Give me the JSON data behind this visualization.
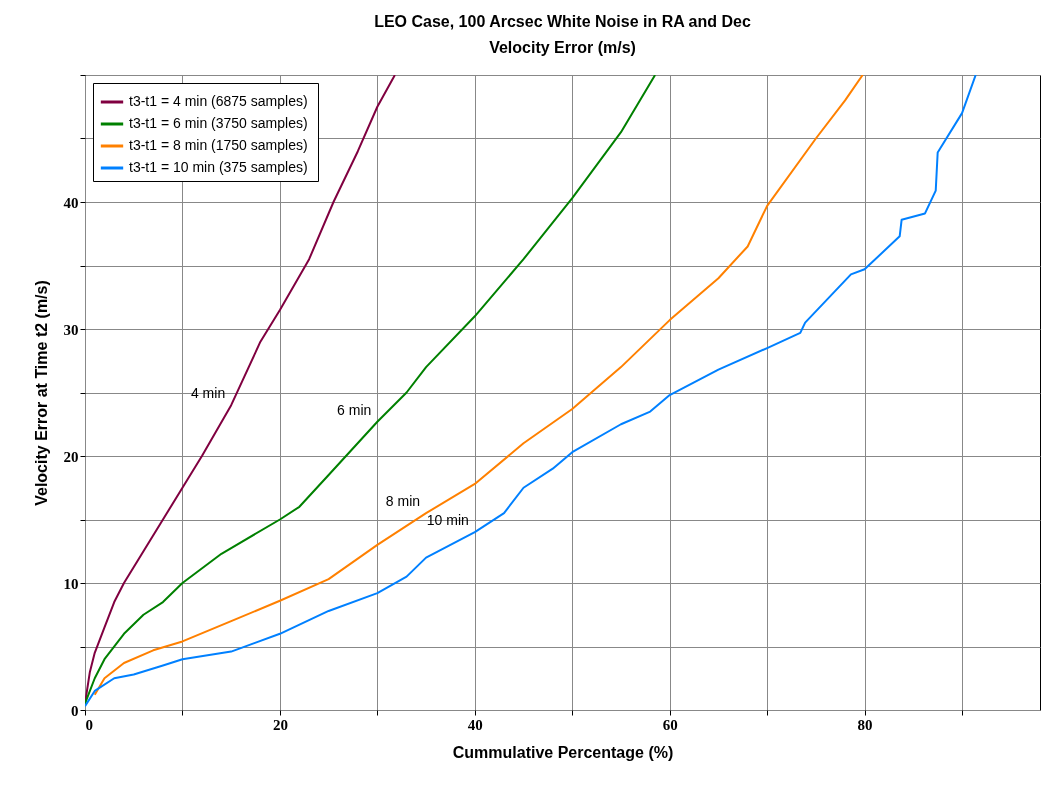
{
  "chart_data": {
    "type": "line",
    "title": "LEO Case, 100 Arcsec White Noise in RA and Dec",
    "subtitle": "Velocity Error (m/s)",
    "xlabel": "Cummulative Percentage (%)",
    "ylabel": "Velocity Error at Time t2 (m/s)",
    "xlim": [
      0,
      98
    ],
    "ylim": [
      0,
      50
    ],
    "xticks": [
      0,
      {
        "value": 10,
        "label": null
      },
      20,
      {
        "value": 30,
        "label": null
      },
      40,
      {
        "value": 50,
        "label": null
      },
      60,
      {
        "value": 70,
        "label": null
      },
      80,
      {
        "value": 90,
        "label": null
      }
    ],
    "yticks": [
      0,
      {
        "value": 5,
        "label": null
      },
      10,
      {
        "value": 15,
        "label": null
      },
      20,
      {
        "value": 25,
        "label": null
      },
      30,
      {
        "value": 35,
        "label": null
      },
      40,
      {
        "value": 45,
        "label": null
      },
      {
        "value": 50,
        "label": null
      }
    ],
    "grid": true,
    "legend": "top left",
    "series": [
      {
        "name": "t3-t1 =  4 min (6875 samples)",
        "color": "#800040",
        "x": [
          0,
          0.5,
          1,
          2,
          3,
          4,
          6,
          8,
          10,
          12,
          15,
          18,
          20,
          23,
          25.5,
          28,
          30,
          31.8
        ],
        "values": [
          0.5,
          3,
          4.5,
          6.5,
          8.5,
          10,
          12.5,
          15,
          17.5,
          20,
          24,
          29,
          31.5,
          35.5,
          40,
          44,
          47.5,
          50
        ]
      },
      {
        "name": "t3-t1 =  6 min (3750 samples)",
        "color": "#008000",
        "x": [
          0,
          1,
          2,
          4,
          6,
          8,
          10,
          14,
          20,
          22,
          25,
          30,
          33,
          35,
          40,
          45,
          50,
          55,
          58.5
        ],
        "values": [
          0.5,
          2.5,
          4,
          6,
          7.5,
          8.5,
          10,
          12.3,
          15,
          16,
          18.5,
          22.7,
          25,
          27,
          31,
          35.5,
          40.3,
          45.5,
          50
        ]
      },
      {
        "name": "t3-t1 =  8 min (1750 samples)",
        "color": "#ff8000",
        "x": [
          1,
          2,
          4,
          7,
          10,
          15,
          20,
          25,
          30,
          35,
          40,
          45,
          50,
          55,
          60,
          65,
          68,
          70,
          75,
          78,
          79.8
        ],
        "values": [
          1.2,
          2.5,
          3.7,
          4.7,
          5.4,
          7,
          8.6,
          10.3,
          13,
          15.5,
          17.8,
          21,
          23.7,
          27,
          30.7,
          34,
          36.5,
          39.7,
          45,
          48,
          50
        ]
      },
      {
        "name": "t3-t1 = 10 min (375 samples)",
        "color": "#0080ff",
        "x": [
          0,
          1,
          3,
          5,
          8,
          10,
          15,
          20,
          25,
          30,
          33,
          35,
          40,
          43,
          45,
          48,
          50,
          55,
          58,
          60,
          65,
          70,
          73.4,
          73.9,
          78.6,
          80,
          83.6,
          83.8,
          86.2,
          87.3,
          87.5,
          90,
          91.4
        ],
        "values": [
          0.3,
          1.5,
          2.5,
          2.8,
          3.5,
          4,
          4.6,
          6,
          7.8,
          9.2,
          10.5,
          12,
          14,
          15.5,
          17.5,
          19,
          20.3,
          22.5,
          23.5,
          24.8,
          26.8,
          28.5,
          29.7,
          30.5,
          34.3,
          34.7,
          37.3,
          38.6,
          39.1,
          40.9,
          43.9,
          47,
          50
        ]
      }
    ],
    "annotations": [
      {
        "text": "4 min",
        "x": 15,
        "y": 24
      },
      {
        "text": "6 min",
        "x": 30,
        "y": 22.7
      },
      {
        "text": "8 min",
        "x": 35,
        "y": 15.5
      },
      {
        "text": "10 min",
        "x": 40,
        "y": 14
      }
    ]
  }
}
